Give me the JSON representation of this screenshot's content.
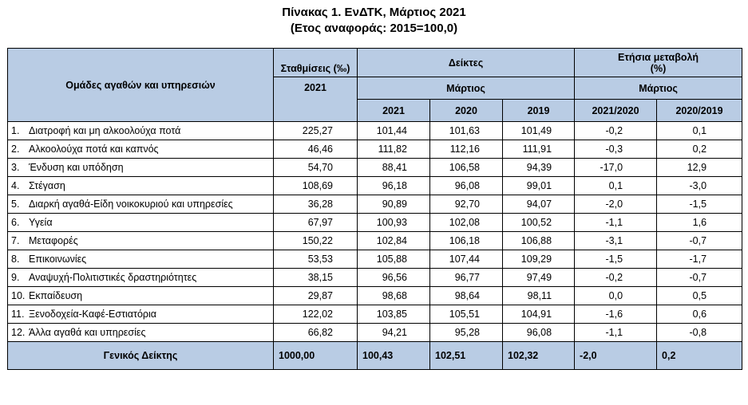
{
  "title": "Πίνακας 1. ΕνΔΤΚ, Μάρτιος 2021",
  "subtitle": "(Ετος αναφοράς: 2015=100,0)",
  "header": {
    "groups_label": "Ομάδες αγαθών και υπηρεσιών",
    "weights_label": "Σταθμίσεις (‰)",
    "weights_year": "2021",
    "indices_label": "Δείκτες",
    "indices_month": "Μάρτιος",
    "annual_change_label": "Ετήσια μεταβολή",
    "annual_change_unit": "(%)",
    "annual_change_month": "Μάρτιος",
    "years": [
      "2021",
      "2020",
      "2019"
    ],
    "change_periods": [
      "2021/2020",
      "2020/2019"
    ]
  },
  "rows": [
    {
      "idx": "1.",
      "label": "Διατροφή και μη αλκοολούχα ποτά",
      "weight": "225,27",
      "i2021": "101,44",
      "i2020": "101,63",
      "i2019": "101,49",
      "c1": "-0,2",
      "c2": "0,1"
    },
    {
      "idx": "2.",
      "label": "Αλκοολούχα ποτά και καπνός",
      "weight": "46,46",
      "i2021": "111,82",
      "i2020": "112,16",
      "i2019": "111,91",
      "c1": "-0,3",
      "c2": "0,2"
    },
    {
      "idx": "3.",
      "label": "Ένδυση και υπόδηση",
      "weight": "54,70",
      "i2021": "88,41",
      "i2020": "106,58",
      "i2019": "94,39",
      "c1": "-17,0",
      "c2": "12,9"
    },
    {
      "idx": "4.",
      "label": "Στέγαση",
      "weight": "108,69",
      "i2021": "96,18",
      "i2020": "96,08",
      "i2019": "99,01",
      "c1": "0,1",
      "c2": "-3,0"
    },
    {
      "idx": "5.",
      "label": "Διαρκή αγαθά-Είδη νοικοκυριού και υπηρεσίες",
      "weight": "36,28",
      "i2021": "90,89",
      "i2020": "92,70",
      "i2019": "94,07",
      "c1": "-2,0",
      "c2": "-1,5"
    },
    {
      "idx": "6.",
      "label": "Υγεία",
      "weight": "67,97",
      "i2021": "100,93",
      "i2020": "102,08",
      "i2019": "100,52",
      "c1": "-1,1",
      "c2": "1,6"
    },
    {
      "idx": "7.",
      "label": "Μεταφορές",
      "weight": "150,22",
      "i2021": "102,84",
      "i2020": "106,18",
      "i2019": "106,88",
      "c1": "-3,1",
      "c2": "-0,7"
    },
    {
      "idx": "8.",
      "label": "Επικοινωνίες",
      "weight": "53,53",
      "i2021": "105,88",
      "i2020": "107,44",
      "i2019": "109,29",
      "c1": "-1,5",
      "c2": "-1,7"
    },
    {
      "idx": "9.",
      "label": "Αναψυχή-Πολιτιστικές δραστηριότητες",
      "weight": "38,15",
      "i2021": "96,56",
      "i2020": "96,77",
      "i2019": "97,49",
      "c1": "-0,2",
      "c2": "-0,7"
    },
    {
      "idx": "10.",
      "label": "Εκπαίδευση",
      "weight": "29,87",
      "i2021": "98,68",
      "i2020": "98,64",
      "i2019": "98,11",
      "c1": "0,0",
      "c2": "0,5"
    },
    {
      "idx": "11.",
      "label": "Ξενοδοχεία-Καφέ-Εστιατόρια",
      "weight": "122,02",
      "i2021": "103,85",
      "i2020": "105,51",
      "i2019": "104,91",
      "c1": "-1,6",
      "c2": "0,6"
    },
    {
      "idx": "12.",
      "label": "Άλλα αγαθά και υπηρεσίες",
      "weight": "66,82",
      "i2021": "94,21",
      "i2020": "95,28",
      "i2019": "96,08",
      "c1": "-1,1",
      "c2": "-0,8"
    }
  ],
  "total": {
    "label": "Γενικός Δείκτης",
    "weight": "1000,00",
    "i2021": "100,43",
    "i2020": "102,51",
    "i2019": "102,32",
    "c1": "-2,0",
    "c2": "0,2"
  }
}
